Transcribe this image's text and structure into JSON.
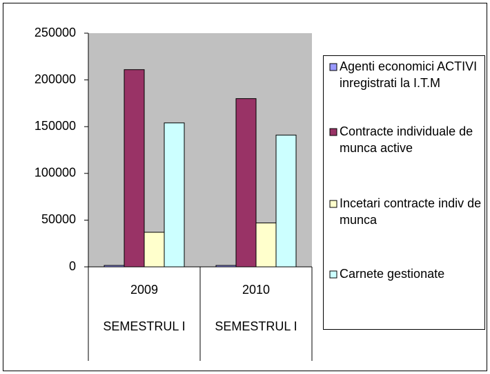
{
  "chart_data": {
    "type": "bar",
    "categories": [
      "2009",
      "2010"
    ],
    "category_groups": [
      "SEMESTRUL I",
      "SEMESTRUL I"
    ],
    "series": [
      {
        "name": "Agenti economici ACTIVI inregistrati la I.T.M",
        "color": "#9999ff",
        "values": [
          1500,
          1500
        ]
      },
      {
        "name": "Contracte individuale de munca active",
        "color": "#993366",
        "values": [
          211000,
          180000
        ]
      },
      {
        "name": "Incetari contracte indiv de munca",
        "color": "#ffffcc",
        "values": [
          37000,
          47000
        ]
      },
      {
        "name": "Carnete gestionate",
        "color": "#ccffff",
        "values": [
          154000,
          141000
        ]
      }
    ],
    "ylim": [
      0,
      250000
    ],
    "yticks": [
      0,
      50000,
      100000,
      150000,
      200000,
      250000
    ],
    "plot_background": "#c0c0c0",
    "legend": "right"
  }
}
